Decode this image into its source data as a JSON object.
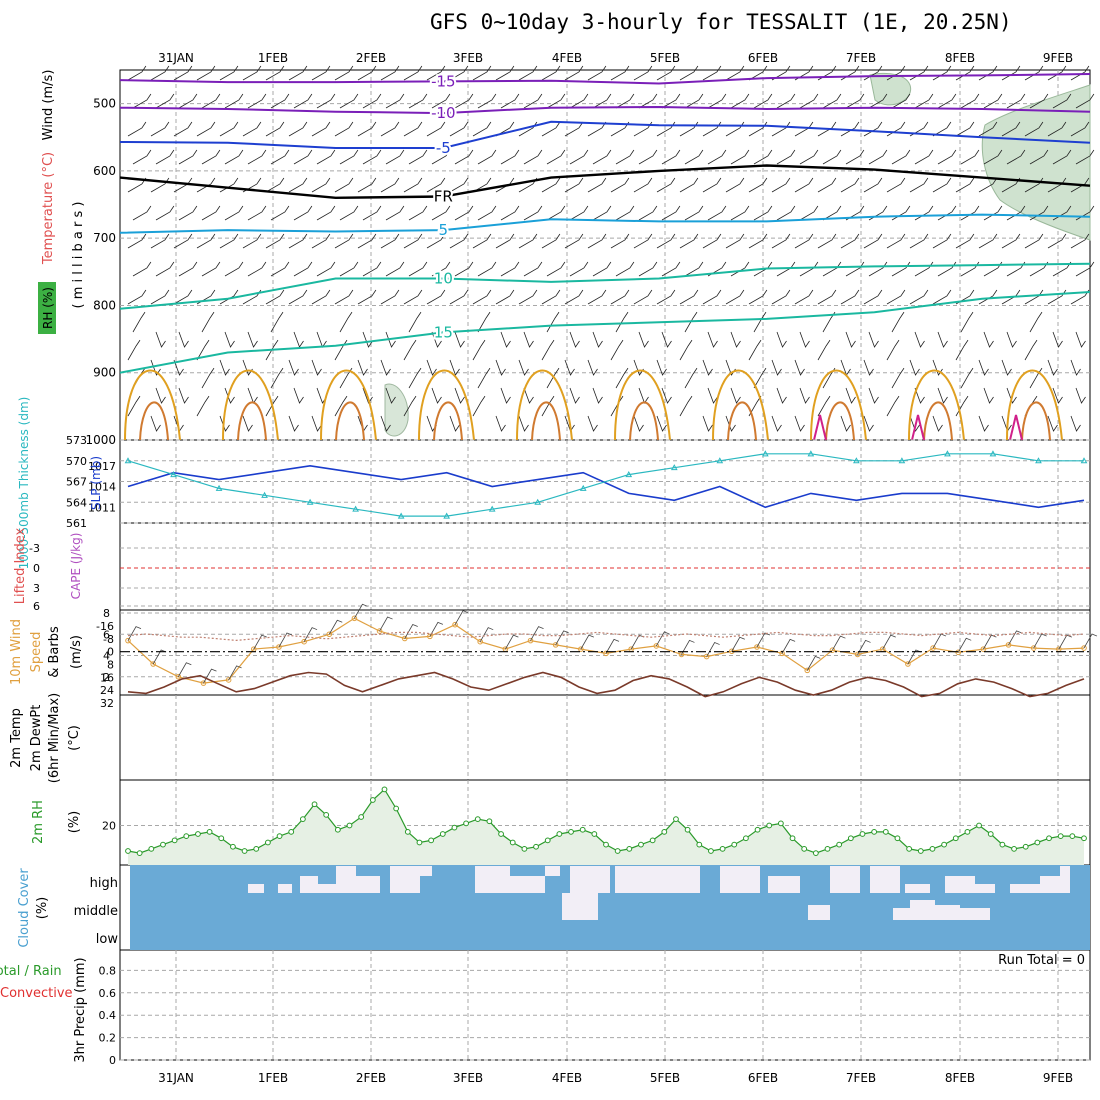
{
  "page": {
    "title": "GFS 0~10day 3-hourly for TESSALIT (1E, 20.25N)"
  },
  "time_axis": {
    "dates": [
      "31JAN",
      "1FEB",
      "2FEB",
      "3FEB",
      "4FEB",
      "5FEB",
      "6FEB",
      "7FEB",
      "8FEB",
      "9FEB"
    ]
  },
  "colors": {
    "temp_neg": "#1e3fd0",
    "temp_purple": "#7a1fb8",
    "temp_cyan": "#1aa0d8",
    "temp_teal": "#1ab8a0",
    "rh_orange": "#e0a020",
    "slp": "#1a3ccc",
    "thickness": "#2ab8c0",
    "wind10": "#e0a040",
    "rh2m": "#2a9a2a",
    "cloud": "#6aaad6",
    "cloud_gap": "#f2eef6"
  },
  "chart_data": [
    {
      "type": "line",
      "panel": "upper-air",
      "ylabel_wind": "Wind (m/s)",
      "ylabel_temp": "Temperature (°C)",
      "ylabel_rh": "RH (%)",
      "ylabel_p": "( m i l l i b a r s )",
      "ylim": [
        1000,
        450
      ],
      "yticks": [
        "500",
        "600",
        "700",
        "800",
        "900",
        "1000"
      ],
      "contour_labels": [
        "-15",
        "-10",
        "-5",
        "FR",
        "5",
        "10",
        "15"
      ],
      "freezing_label": "FR",
      "isotherms": [
        {
          "name": "-15",
          "values": [
            465,
            468,
            468,
            467,
            466,
            470,
            462,
            459,
            458,
            456
          ]
        },
        {
          "name": "-10",
          "values": [
            506,
            508,
            512,
            514,
            506,
            505,
            508,
            506,
            508,
            512
          ]
        },
        {
          "name": "-5",
          "values": [
            557,
            558,
            566,
            566,
            527,
            532,
            533,
            541,
            550,
            558
          ]
        },
        {
          "name": "FR",
          "values": [
            610,
            625,
            640,
            638,
            610,
            600,
            592,
            598,
            610,
            622
          ]
        },
        {
          "name": "5",
          "values": [
            692,
            688,
            690,
            688,
            672,
            675,
            675,
            668,
            665,
            668
          ]
        },
        {
          "name": "10",
          "values": [
            805,
            790,
            760,
            760,
            765,
            760,
            745,
            742,
            740,
            738
          ]
        },
        {
          "name": "15",
          "values": [
            900,
            870,
            860,
            840,
            830,
            825,
            820,
            810,
            790,
            780
          ]
        }
      ]
    },
    {
      "type": "line",
      "panel": "slp-thickness",
      "ylabel_thickness": "1000-500mb Thickness (dm)",
      "ylabel_slp": "SLP (mb)",
      "yticks_thickness": [
        "561",
        "564",
        "567",
        "570",
        "573"
      ],
      "yticks_slp": [
        "1011",
        "1014",
        "1017"
      ],
      "series": [
        {
          "name": "SLP",
          "values": [
            1014,
            1016,
            1015,
            1016,
            1017,
            1016,
            1015,
            1016,
            1014,
            1015,
            1016,
            1013,
            1012,
            1014,
            1011,
            1013,
            1012,
            1013,
            1013,
            1012,
            1011,
            1012
          ]
        },
        {
          "name": "Thickness",
          "values": [
            570,
            568,
            566,
            565,
            564,
            563,
            562,
            562,
            563,
            564,
            566,
            568,
            569,
            570,
            571,
            571,
            570,
            570,
            571,
            571,
            570,
            570
          ]
        }
      ]
    },
    {
      "type": "line",
      "panel": "cape-li",
      "ylabel_li": "Lifted Index",
      "ylabel_cape": "CAPE (J/kg)",
      "yticks": [
        "-3",
        "0",
        "3",
        "6"
      ],
      "values": []
    },
    {
      "type": "line",
      "panel": "wind10m",
      "ylabel": "10m Wind Speed & Barbs (m/s)",
      "yticks": [
        "2",
        "4",
        "6",
        "8"
      ],
      "ylim": [
        0,
        8
      ],
      "values": [
        5.4,
        3.2,
        2.0,
        1.4,
        1.7,
        4.6,
        4.8,
        5.3,
        6.0,
        7.5,
        6.3,
        5.6,
        5.8,
        6.9,
        5.3,
        4.6,
        5.4,
        5.0,
        4.6,
        4.2,
        4.6,
        4.9,
        4.1,
        3.9,
        4.4,
        4.8,
        4.2,
        2.6,
        4.5,
        4.1,
        4.6,
        3.2,
        4.7,
        4.3,
        4.6,
        5.0,
        4.7,
        4.6,
        4.7
      ]
    },
    {
      "type": "area",
      "panel": "temp2m",
      "ylabel": "2m Temp 2m DewPt (6hr Min/Max) (°C)",
      "yticks": [
        "32",
        "24",
        "16",
        "8",
        "0",
        "-8",
        "-16"
      ],
      "ylim": [
        -16,
        32
      ],
      "series": [
        {
          "name": "Temp",
          "values": [
            25,
            26,
            22,
            17,
            15,
            20,
            25,
            23,
            19,
            15,
            13,
            14,
            21,
            25,
            21,
            17,
            15,
            13,
            17,
            22,
            24,
            20,
            16,
            13,
            16,
            22,
            26,
            24,
            18,
            15,
            17,
            22,
            28,
            25,
            20,
            16,
            19,
            24,
            27,
            24,
            19,
            16,
            18,
            22,
            28,
            26,
            20,
            17,
            19,
            23,
            28,
            26,
            21,
            17
          ]
        },
        {
          "name": "DewPt",
          "values": [
            -10,
            -11,
            -10,
            -9,
            -9,
            -8,
            -7,
            -8,
            -9,
            -10,
            -9,
            -8,
            -9,
            -10,
            -11,
            -12,
            -12,
            -11,
            -10,
            -9,
            -10,
            -11,
            -11,
            -10,
            -10,
            -11,
            -12,
            -11,
            -10,
            -9,
            -10,
            -11,
            -10,
            -9,
            -10,
            -11,
            -12,
            -11,
            -10,
            -10,
            -11,
            -12,
            -12,
            -11,
            -10,
            -11,
            -12,
            -11,
            -10,
            -11,
            -12,
            -11,
            -10,
            -11
          ]
        }
      ]
    },
    {
      "type": "line",
      "panel": "rh2m",
      "ylabel": "2m RH (%)",
      "yticks": [
        "20"
      ],
      "ylim": [
        0,
        40
      ],
      "values": [
        8,
        7,
        9,
        11,
        13,
        15,
        16,
        17,
        14,
        10,
        8,
        9,
        12,
        15,
        17,
        23,
        30,
        25,
        18,
        20,
        24,
        32,
        37,
        28,
        17,
        12,
        13,
        16,
        19,
        21,
        23,
        22,
        16,
        12,
        9,
        10,
        13,
        16,
        17,
        18,
        16,
        11,
        8,
        9,
        11,
        13,
        17,
        23,
        18,
        11,
        8,
        9,
        11,
        14,
        18,
        20,
        21,
        14,
        9,
        7,
        9,
        11,
        14,
        16,
        17,
        17,
        14,
        9,
        8,
        9,
        11,
        14,
        17,
        20,
        16,
        11,
        9,
        10,
        12,
        14,
        15,
        15,
        14
      ]
    },
    {
      "type": "heatmap",
      "panel": "cloud",
      "ylabel": "Cloud Cover (%)",
      "rows": [
        "high",
        "middle",
        "low"
      ]
    },
    {
      "type": "bar",
      "panel": "precip",
      "ylabel": "3hr Precip (mm)",
      "ylabel_total": "Total / Rain",
      "ylabel_conv": "Convective",
      "yticks": [
        "0",
        "0.2",
        "0.4",
        "0.6",
        "0.8"
      ],
      "run_total_label": "Run Total = 0",
      "values": []
    }
  ]
}
